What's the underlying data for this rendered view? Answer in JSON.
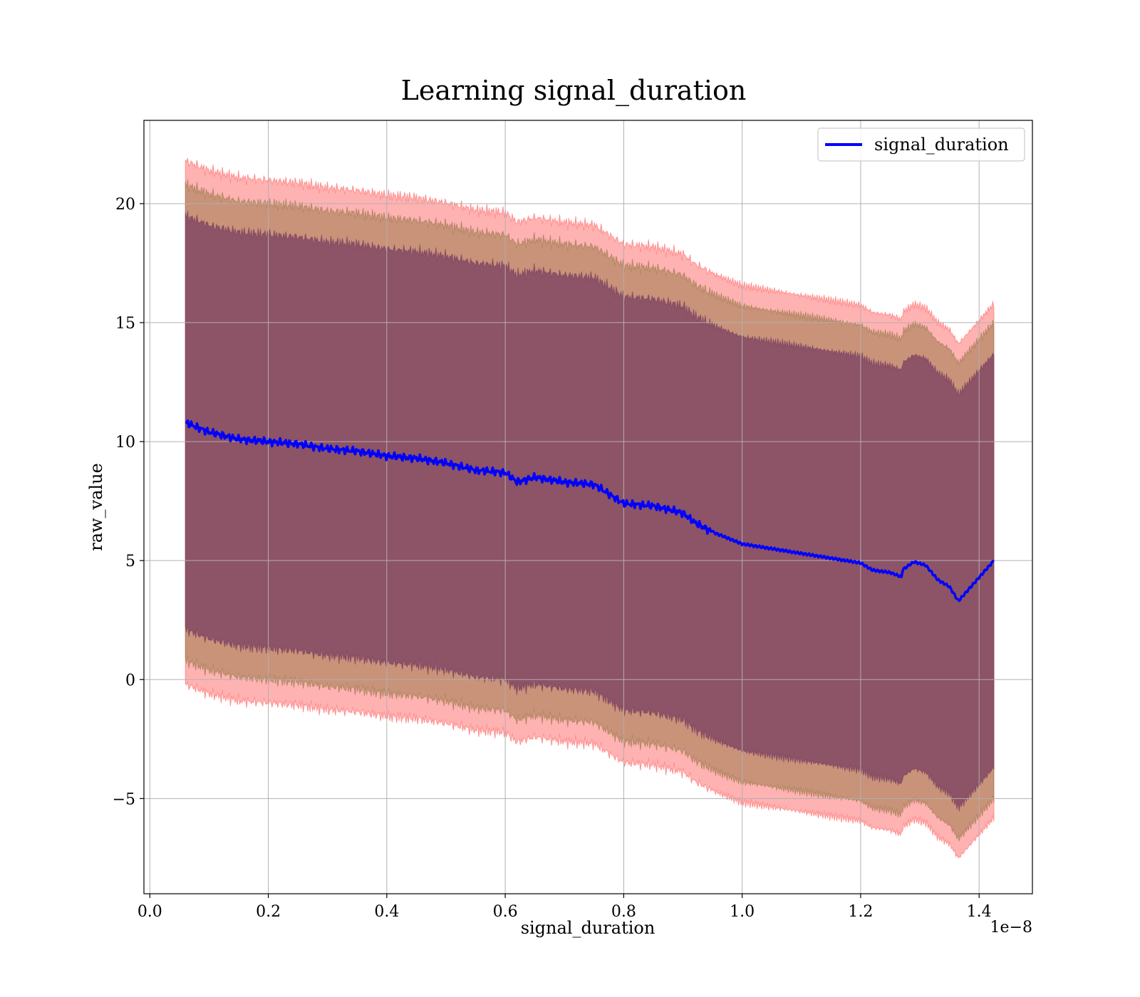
{
  "chart_data": {
    "type": "line",
    "title": "Learning signal_duration",
    "xlabel": "signal_duration",
    "ylabel": "raw_value",
    "x_offset_label": "1e−8",
    "xlim": [
      -0.01,
      1.49
    ],
    "ylim": [
      -9.0,
      23.5
    ],
    "x_ticks": [
      0.0,
      0.2,
      0.4,
      0.6,
      0.8,
      1.0,
      1.2,
      1.4
    ],
    "x_tick_labels": [
      "0.0",
      "0.2",
      "0.4",
      "0.6",
      "0.8",
      "1.0",
      "1.2",
      "1.4"
    ],
    "y_ticks": [
      -5,
      0,
      5,
      10,
      15,
      20
    ],
    "y_tick_labels": [
      "−5",
      "0",
      "5",
      "10",
      "15",
      "20"
    ],
    "grid": true,
    "legend_position": "top-right",
    "colors": {
      "line": "#0000ff",
      "band_3": "#ff6666",
      "band_2": "#9a7a4a",
      "band_1": "#7a3e60"
    },
    "series": [
      {
        "name": "signal_duration",
        "x": [
          0.06,
          0.1,
          0.15,
          0.2,
          0.25,
          0.3,
          0.35,
          0.4,
          0.45,
          0.5,
          0.55,
          0.6,
          0.62,
          0.65,
          0.7,
          0.75,
          0.8,
          0.85,
          0.9,
          0.92,
          0.95,
          1.0,
          1.05,
          1.1,
          1.15,
          1.2,
          1.22,
          1.25,
          1.27,
          1.27,
          1.29,
          1.31,
          1.33,
          1.35,
          1.365,
          1.425
        ],
        "values": [
          10.8,
          10.4,
          10.1,
          10.0,
          9.9,
          9.7,
          9.6,
          9.4,
          9.3,
          9.1,
          8.8,
          8.7,
          8.3,
          8.5,
          8.3,
          8.2,
          7.4,
          7.3,
          7.0,
          6.6,
          6.2,
          5.7,
          5.5,
          5.3,
          5.1,
          4.9,
          4.6,
          4.5,
          4.3,
          4.6,
          4.95,
          4.8,
          4.2,
          3.9,
          3.3,
          5.0
        ]
      }
    ],
    "bands": [
      {
        "level": 3,
        "half_width_at_start": 11.0,
        "half_width_at_end": 10.8
      },
      {
        "level": 2,
        "half_width_at_start": 10.0,
        "half_width_at_end": 10.0
      },
      {
        "level": 1,
        "half_width_at_start": 8.7,
        "half_width_at_end": 8.7
      }
    ]
  }
}
